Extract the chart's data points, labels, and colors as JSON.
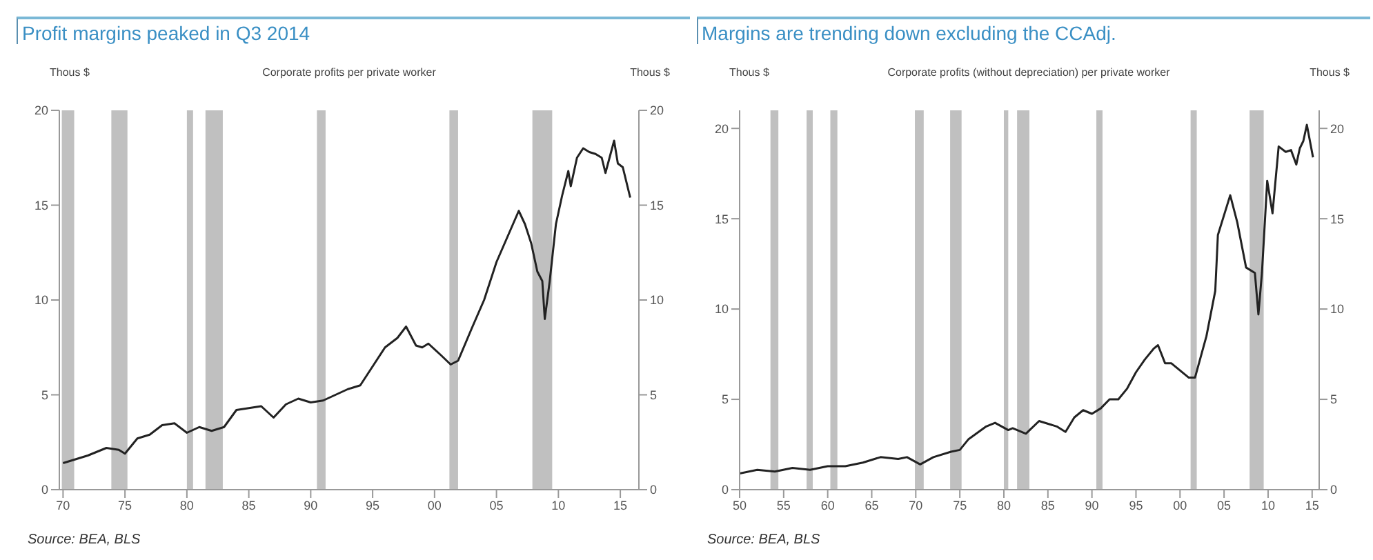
{
  "chart_data": [
    {
      "type": "line",
      "title": "Profit margins peaked in Q3 2014",
      "subtitle": "Corporate profits per private worker",
      "ylabel": "Thous $",
      "y2label": "Thous $",
      "x": [
        1970.0,
        1972,
        1973.5,
        1974.5,
        1975,
        1976,
        1977,
        1978,
        1979,
        1980,
        1981,
        1982,
        1983,
        1984,
        1985,
        1986,
        1987,
        1988,
        1989,
        1990,
        1991,
        1992,
        1993,
        1994,
        1995,
        1996,
        1997,
        1997.7,
        1998.5,
        1999,
        1999.5,
        2000.5,
        2001.3,
        2001.9,
        2003,
        2004,
        2005,
        2006,
        2006.8,
        2007.3,
        2007.8,
        2008.3,
        2008.7,
        2008.9,
        2009.3,
        2009.8,
        2010.3,
        2010.8,
        2011,
        2011.5,
        2012,
        2012.5,
        2013,
        2013.5,
        2013.8,
        2014.5,
        2014.8,
        2015.2,
        2015.8
      ],
      "values": [
        1.4,
        1.8,
        2.2,
        2.1,
        1.9,
        2.7,
        2.9,
        3.4,
        3.5,
        3.0,
        3.3,
        3.1,
        3.3,
        4.2,
        4.3,
        4.4,
        3.8,
        4.5,
        4.8,
        4.6,
        4.7,
        5.0,
        5.3,
        5.5,
        6.5,
        7.5,
        8.0,
        8.6,
        7.6,
        7.5,
        7.7,
        7.1,
        6.6,
        6.8,
        8.5,
        10.0,
        12.0,
        13.5,
        14.7,
        14.0,
        13.0,
        11.5,
        11.0,
        9.0,
        11.0,
        14.0,
        15.5,
        16.8,
        16.0,
        17.5,
        18.0,
        17.8,
        17.7,
        17.5,
        16.7,
        18.4,
        17.2,
        17.0,
        15.4
      ],
      "color": "#222222",
      "xlim": [
        1969.7,
        2016.5
      ],
      "xticks": [
        {
          "value": 1970,
          "label": "70"
        },
        {
          "value": 1975,
          "label": "75"
        },
        {
          "value": 1980,
          "label": "80"
        },
        {
          "value": 1985,
          "label": "85"
        },
        {
          "value": 1990,
          "label": "90"
        },
        {
          "value": 1995,
          "label": "95"
        },
        {
          "value": 2000,
          "label": "00"
        },
        {
          "value": 2005,
          "label": "05"
        },
        {
          "value": 2010,
          "label": "10"
        },
        {
          "value": 2015,
          "label": "15"
        }
      ],
      "ylim": [
        0,
        20
      ],
      "yticks": [
        0,
        5,
        10,
        15,
        20
      ],
      "y2lim": [
        0,
        20
      ],
      "y2ticks": [
        0,
        5,
        10,
        15,
        20
      ],
      "bands": [
        {
          "axis": "x",
          "from": 1969.9,
          "to": 1970.9,
          "color": "#c0c0c0"
        },
        {
          "axis": "x",
          "from": 1973.9,
          "to": 1975.2,
          "color": "#c0c0c0"
        },
        {
          "axis": "x",
          "from": 1980.0,
          "to": 1980.5,
          "color": "#c0c0c0"
        },
        {
          "axis": "x",
          "from": 1981.5,
          "to": 1982.9,
          "color": "#c0c0c0"
        },
        {
          "axis": "x",
          "from": 1990.5,
          "to": 1991.2,
          "color": "#c0c0c0"
        },
        {
          "axis": "x",
          "from": 2001.2,
          "to": 2001.9,
          "color": "#c0c0c0"
        },
        {
          "axis": "x",
          "from": 2007.9,
          "to": 2009.5,
          "color": "#c0c0c0"
        }
      ],
      "annotations": [
        "Source: BEA, BLS"
      ]
    },
    {
      "type": "line",
      "title": "Margins are trending down excluding the CCAdj.",
      "subtitle": "Corporate profits (without depreciation) per private worker",
      "ylabel": "Thous $",
      "y2label": "Thous $",
      "x": [
        1950,
        1952,
        1954,
        1956,
        1958,
        1960,
        1962,
        1964,
        1966,
        1968,
        1969,
        1970.5,
        1972,
        1974,
        1975,
        1976,
        1978,
        1979,
        1980.5,
        1981,
        1982.5,
        1984,
        1986,
        1987,
        1988,
        1989,
        1990,
        1991,
        1992,
        1993,
        1994,
        1995,
        1996,
        1997,
        1997.5,
        1998.3,
        1999,
        2000,
        2001,
        2001.7,
        2003,
        2004,
        2004.3,
        2005.7,
        2006.5,
        2007.5,
        2008.5,
        2008.9,
        2009.3,
        2009.9,
        2010.5,
        2011.2,
        2012,
        2012.6,
        2013.2,
        2013.6,
        2014,
        2014.4,
        2015.1
      ],
      "values": [
        0.9,
        1.1,
        1.0,
        1.2,
        1.1,
        1.3,
        1.3,
        1.5,
        1.8,
        1.7,
        1.8,
        1.4,
        1.8,
        2.1,
        2.2,
        2.8,
        3.5,
        3.7,
        3.3,
        3.4,
        3.1,
        3.8,
        3.5,
        3.2,
        4.0,
        4.4,
        4.2,
        4.5,
        5.0,
        5.0,
        5.6,
        6.5,
        7.2,
        7.8,
        8.0,
        7.0,
        7.0,
        6.6,
        6.2,
        6.2,
        8.5,
        11.0,
        14.1,
        16.3,
        14.8,
        12.3,
        12.0,
        9.7,
        12.0,
        17.1,
        15.3,
        19.0,
        18.7,
        18.8,
        18.0,
        18.9,
        19.3,
        20.2,
        18.4
      ],
      "color": "#222222",
      "xlim": [
        1950,
        2015.8
      ],
      "xticks": [
        {
          "value": 1950,
          "label": "50"
        },
        {
          "value": 1955,
          "label": "55"
        },
        {
          "value": 1960,
          "label": "60"
        },
        {
          "value": 1965,
          "label": "65"
        },
        {
          "value": 1970,
          "label": "70"
        },
        {
          "value": 1975,
          "label": "75"
        },
        {
          "value": 1980,
          "label": "80"
        },
        {
          "value": 1985,
          "label": "85"
        },
        {
          "value": 1990,
          "label": "90"
        },
        {
          "value": 1995,
          "label": "95"
        },
        {
          "value": 2000,
          "label": "00"
        },
        {
          "value": 2005,
          "label": "05"
        },
        {
          "value": 2010,
          "label": "10"
        },
        {
          "value": 2015,
          "label": "15"
        }
      ],
      "ylim": [
        0,
        21
      ],
      "yticks": [
        0,
        5,
        10,
        15,
        20
      ],
      "y2lim": [
        0,
        21
      ],
      "y2ticks": [
        0,
        5,
        10,
        15,
        20
      ],
      "bands": [
        {
          "axis": "x",
          "from": 1953.5,
          "to": 1954.4,
          "color": "#c0c0c0"
        },
        {
          "axis": "x",
          "from": 1957.6,
          "to": 1958.3,
          "color": "#c0c0c0"
        },
        {
          "axis": "x",
          "from": 1960.3,
          "to": 1961.1,
          "color": "#c0c0c0"
        },
        {
          "axis": "x",
          "from": 1969.9,
          "to": 1970.9,
          "color": "#c0c0c0"
        },
        {
          "axis": "x",
          "from": 1973.9,
          "to": 1975.2,
          "color": "#c0c0c0"
        },
        {
          "axis": "x",
          "from": 1980.0,
          "to": 1980.5,
          "color": "#c0c0c0"
        },
        {
          "axis": "x",
          "from": 1981.5,
          "to": 1982.9,
          "color": "#c0c0c0"
        },
        {
          "axis": "x",
          "from": 1990.5,
          "to": 1991.2,
          "color": "#c0c0c0"
        },
        {
          "axis": "x",
          "from": 2001.2,
          "to": 2001.9,
          "color": "#c0c0c0"
        },
        {
          "axis": "x",
          "from": 2007.9,
          "to": 2009.5,
          "color": "#c0c0c0"
        }
      ],
      "annotations": [
        "Source: BEA, BLS"
      ]
    }
  ]
}
